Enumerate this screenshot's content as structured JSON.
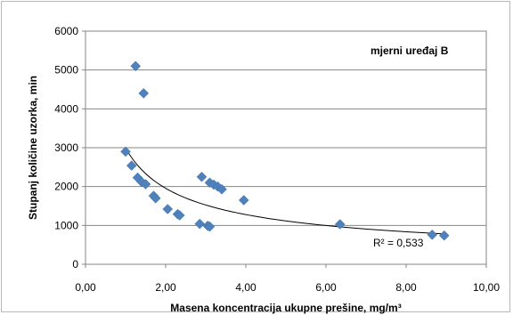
{
  "chart_data": {
    "type": "scatter",
    "title": "",
    "annotation": "mjerni uređaj B",
    "xlabel": "Masena koncentracija  ukupne prešine, mg/m³",
    "ylabel": "Stupanj količine  uzorka, min",
    "xlim": [
      0,
      10
    ],
    "ylim": [
      0,
      6000
    ],
    "x_ticks": [
      "0,00",
      "2,00",
      "4,00",
      "6,00",
      "8,00",
      "10,00"
    ],
    "y_ticks": [
      "0",
      "1000",
      "2000",
      "3000",
      "4000",
      "5000",
      "6000"
    ],
    "grid": "horizontal",
    "marker_color": "#4f81bd",
    "trendline": {
      "type": "power",
      "label": "R² = 0,533",
      "color": "#000000"
    },
    "series": [
      {
        "points": [
          [
            1.0,
            2900
          ],
          [
            1.15,
            2540
          ],
          [
            1.25,
            5100
          ],
          [
            1.3,
            2230
          ],
          [
            1.4,
            2120
          ],
          [
            1.45,
            4400
          ],
          [
            1.5,
            2060
          ],
          [
            1.7,
            1760
          ],
          [
            1.75,
            1700
          ],
          [
            2.05,
            1420
          ],
          [
            2.3,
            1290
          ],
          [
            2.35,
            1260
          ],
          [
            2.85,
            1040
          ],
          [
            2.9,
            2250
          ],
          [
            3.05,
            990
          ],
          [
            3.1,
            970
          ],
          [
            3.1,
            2100
          ],
          [
            3.2,
            2050
          ],
          [
            3.3,
            2000
          ],
          [
            3.4,
            1930
          ],
          [
            3.95,
            1650
          ],
          [
            6.35,
            1030
          ],
          [
            8.65,
            760
          ],
          [
            8.95,
            740
          ]
        ]
      }
    ]
  }
}
